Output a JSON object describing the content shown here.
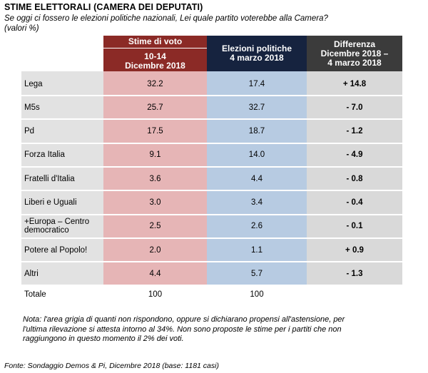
{
  "title": "STIME ELETTORALI (CAMERA DEI DEPUTATI)",
  "subtitle_line1": "Se oggi ci fossero le elezioni politiche nazionali, Lei quale partito voterebbe alla Camera?",
  "subtitle_line2": "(valori %)",
  "headers": {
    "col1_line1": "Stime di voto",
    "col1_line2": "10-14",
    "col1_line3": "Dicembre 2018",
    "col2_line1": "Elezioni politiche",
    "col2_line2": "4 marzo 2018",
    "col3_line1": "Differenza",
    "col3_line2": "Dicembre 2018 –",
    "col3_line3": "4 marzo 2018"
  },
  "rows": [
    {
      "party": "Lega",
      "stime": "32.2",
      "elezioni": "17.4",
      "diff": "+ 14.8"
    },
    {
      "party": "M5s",
      "stime": "25.7",
      "elezioni": "32.7",
      "diff": "- 7.0"
    },
    {
      "party": "Pd",
      "stime": "17.5",
      "elezioni": "18.7",
      "diff": "- 1.2"
    },
    {
      "party": "Forza Italia",
      "stime": "9.1",
      "elezioni": "14.0",
      "diff": "- 4.9"
    },
    {
      "party": "Fratelli d'Italia",
      "stime": "3.6",
      "elezioni": "4.4",
      "diff": "- 0.8"
    },
    {
      "party": "Liberi e Uguali",
      "stime": "3.0",
      "elezioni": "3.4",
      "diff": "- 0.4"
    },
    {
      "party": "+Europa – Centro democratico",
      "stime": "2.5",
      "elezioni": "2.6",
      "diff": "- 0.1"
    },
    {
      "party": "Potere al Popolo!",
      "stime": "2.0",
      "elezioni": "1.1",
      "diff": "+ 0.9"
    },
    {
      "party": "Altri",
      "stime": "4.4",
      "elezioni": "5.7",
      "diff": "- 1.3"
    }
  ],
  "total": {
    "label": "Totale",
    "stime": "100",
    "elezioni": "100"
  },
  "note_line1": "Nota: l'area grigia di quanti non rispondono, oppure si dichiarano propensi all'astensione, per",
  "note_line2": "l'ultima rilevazione si attesta intorno al 34%. Non sono proposte le stime per i partiti che non",
  "note_line3": "raggiungono in questo momento il 2% dei voti.",
  "source": "Fonte: Sondaggio Demos & Pi, Dicembre 2018 (base: 1181 casi)",
  "colors": {
    "header_red": "#8b2a26",
    "header_navy": "#16233f",
    "header_gray": "#3b3b3b",
    "body_label_gray": "#e2e2e2",
    "body_pink": "#e6b5b6",
    "body_blue": "#b7cbe2",
    "body_diff_gray": "#d9d9d9"
  }
}
